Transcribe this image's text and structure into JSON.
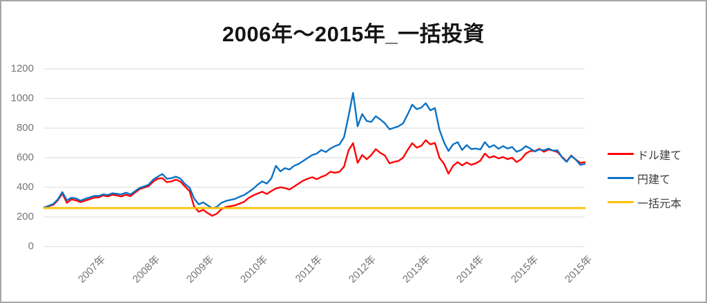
{
  "frame": {
    "background": "#ffffff",
    "border_color": "#a6a6a6"
  },
  "axis_style": {
    "tick_label_color": "#757575",
    "grid_color": "#d9d9d9",
    "legend_text_color": "#3d3d3d"
  },
  "chart_data": {
    "type": "line",
    "title": "2006年～2015年_一括投資",
    "xlabel": "",
    "ylabel": "",
    "ylim": [
      0,
      1200
    ],
    "y_ticks": [
      0,
      200,
      400,
      600,
      800,
      1000,
      1200
    ],
    "x_tick_labels": [
      "2007年",
      "2008年",
      "2009年",
      "2010年",
      "2011年",
      "2012年",
      "2013年",
      "2014年",
      "2015年",
      "2015年"
    ],
    "x_axis": {
      "start_year": 2006,
      "end_year_exclusive": 2016,
      "sampling": "monthly-estimates"
    },
    "grid": true,
    "legend_position": "right",
    "series": [
      {
        "name": "ドル建て",
        "color": "#ff0000",
        "values": [
          263,
          272,
          282,
          312,
          358,
          295,
          318,
          312,
          300,
          310,
          320,
          330,
          332,
          345,
          338,
          350,
          345,
          338,
          350,
          340,
          365,
          388,
          398,
          408,
          438,
          458,
          462,
          435,
          440,
          452,
          438,
          405,
          375,
          270,
          235,
          248,
          225,
          208,
          222,
          252,
          268,
          272,
          278,
          290,
          302,
          328,
          345,
          358,
          370,
          355,
          375,
          392,
          400,
          395,
          385,
          405,
          425,
          445,
          458,
          468,
          455,
          470,
          482,
          505,
          498,
          505,
          540,
          650,
          698,
          565,
          618,
          590,
          618,
          658,
          632,
          615,
          562,
          572,
          578,
          600,
          652,
          698,
          668,
          680,
          718,
          690,
          700,
          600,
          560,
          492,
          545,
          570,
          548,
          568,
          552,
          562,
          580,
          628,
          600,
          610,
          595,
          605,
          590,
          600,
          570,
          590,
          628,
          645,
          645,
          660,
          640,
          655,
          648,
          638,
          605,
          575,
          615,
          588,
          565,
          570
        ]
      },
      {
        "name": "円建て",
        "color": "#0b72c4",
        "values": [
          264,
          275,
          288,
          318,
          368,
          312,
          330,
          325,
          310,
          322,
          332,
          342,
          342,
          352,
          348,
          360,
          356,
          352,
          364,
          352,
          374,
          396,
          406,
          418,
          452,
          472,
          490,
          458,
          462,
          472,
          458,
          422,
          398,
          325,
          285,
          298,
          278,
          258,
          268,
          295,
          308,
          315,
          322,
          336,
          348,
          368,
          390,
          418,
          440,
          425,
          460,
          545,
          508,
          530,
          520,
          545,
          558,
          578,
          598,
          618,
          628,
          652,
          638,
          662,
          678,
          690,
          738,
          880,
          1038,
          812,
          895,
          848,
          842,
          880,
          858,
          832,
          792,
          802,
          812,
          832,
          892,
          958,
          928,
          938,
          968,
          920,
          935,
          790,
          705,
          645,
          690,
          705,
          652,
          685,
          658,
          662,
          655,
          705,
          670,
          685,
          660,
          678,
          662,
          672,
          640,
          652,
          678,
          662,
          642,
          656,
          650,
          662,
          648,
          650,
          602,
          572,
          612,
          588,
          552,
          558
        ]
      },
      {
        "name": "一括元本",
        "color": "#ffc000",
        "constant": 260
      }
    ]
  }
}
